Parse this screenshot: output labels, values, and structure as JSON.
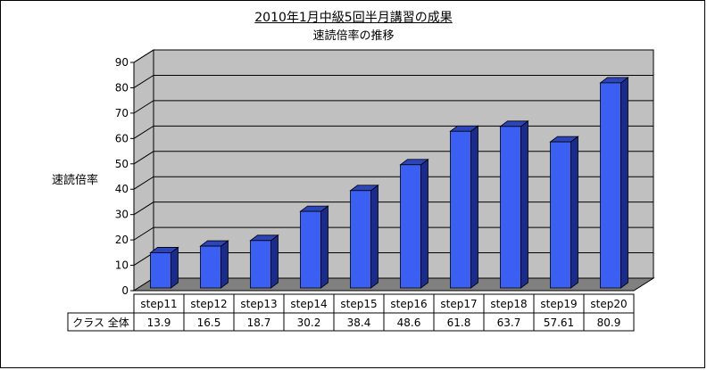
{
  "chart_data": {
    "type": "bar",
    "title": "2010年1月中級5回半月講習の成果",
    "subtitle": "速読倍率の推移",
    "ylabel": "速読倍率",
    "xlabel": "",
    "ylim": [
      0,
      90
    ],
    "yticks": [
      "0",
      "10",
      "20",
      "30",
      "40",
      "50",
      "60",
      "70",
      "80",
      "90"
    ],
    "categories": [
      "step11",
      "step12",
      "step13",
      "step14",
      "step15",
      "step16",
      "step17",
      "step18",
      "step19",
      "step20"
    ],
    "series": [
      {
        "name": "クラス 全体",
        "values": [
          13.9,
          16.5,
          18.7,
          30.2,
          38.4,
          48.6,
          61.8,
          63.7,
          57.61,
          80.9
        ],
        "labels": [
          "13.9",
          "16.5",
          "18.7",
          "30.2",
          "38.4",
          "48.6",
          "61.8",
          "63.7",
          "57.61",
          "80.9"
        ]
      }
    ],
    "grid": true,
    "legend": "data-table",
    "colors": {
      "bar_front": "#3a5ff2",
      "bar_side": "#1a2b8a",
      "bar_top": "#2c45b8",
      "wall": "#c0c0c0",
      "floor": "#808080"
    }
  }
}
